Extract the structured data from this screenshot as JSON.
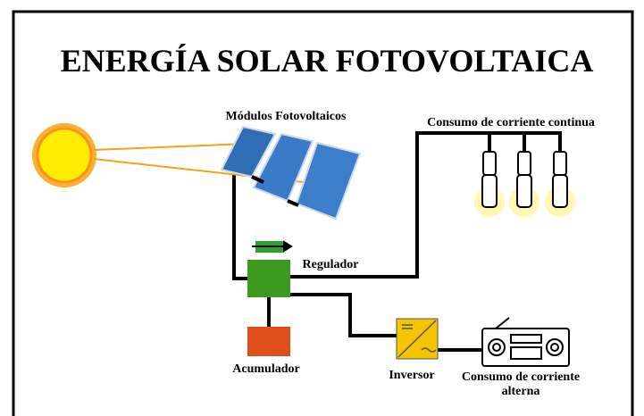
{
  "title": "ENERGÍA SOLAR FOTOVOLTAICA",
  "labels": {
    "modulos": "Módulos Fotovoltaicos",
    "continua": "Consumo de corriente continua",
    "regulador": "Regulador",
    "acumulador": "Acumulador",
    "inversor": "Inversor",
    "alterna": [
      "Consumo de corriente",
      "alterna"
    ]
  }
}
